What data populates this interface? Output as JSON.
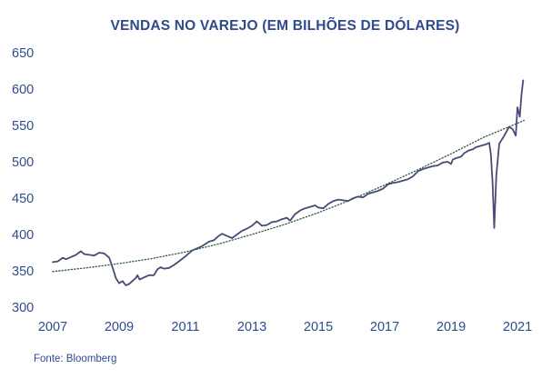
{
  "chart_data": {
    "type": "line",
    "title": "VENDAS NO VAREJO (EM BILHÕES DE DÓLARES)",
    "xlabel": "",
    "ylabel": "",
    "xlim": [
      2007.0,
      2021.3
    ],
    "ylim": [
      300,
      650
    ],
    "x_ticks": [
      "2007",
      "2009",
      "2011",
      "2013",
      "2015",
      "2017",
      "2019",
      "2021"
    ],
    "x_tick_values": [
      2007,
      2009,
      2011,
      2013,
      2015,
      2017,
      2019,
      2021
    ],
    "y_ticks": [
      "300",
      "350",
      "400",
      "450",
      "500",
      "550",
      "600",
      "650"
    ],
    "y_tick_values": [
      300,
      350,
      400,
      450,
      500,
      550,
      600,
      650
    ],
    "grid": false,
    "legend": "none",
    "series": [
      {
        "style": "solid",
        "color": "#4a4a78",
        "points": [
          [
            2007.0,
            362
          ],
          [
            2007.15,
            363
          ],
          [
            2007.3,
            368
          ],
          [
            2007.4,
            366
          ],
          [
            2007.55,
            369
          ],
          [
            2007.7,
            372
          ],
          [
            2007.85,
            377
          ],
          [
            2007.95,
            373
          ],
          [
            2008.1,
            372
          ],
          [
            2008.25,
            371
          ],
          [
            2008.4,
            375
          ],
          [
            2008.55,
            374
          ],
          [
            2008.7,
            368
          ],
          [
            2008.8,
            355
          ],
          [
            2008.9,
            340
          ],
          [
            2009.0,
            333
          ],
          [
            2009.1,
            336
          ],
          [
            2009.2,
            330
          ],
          [
            2009.3,
            332
          ],
          [
            2009.4,
            336
          ],
          [
            2009.5,
            340
          ],
          [
            2009.55,
            344
          ],
          [
            2009.62,
            338
          ],
          [
            2009.75,
            341
          ],
          [
            2009.9,
            344
          ],
          [
            2010.05,
            344
          ],
          [
            2010.15,
            352
          ],
          [
            2010.25,
            355
          ],
          [
            2010.35,
            353
          ],
          [
            2010.5,
            354
          ],
          [
            2010.65,
            358
          ],
          [
            2010.8,
            363
          ],
          [
            2011.0,
            370
          ],
          [
            2011.2,
            378
          ],
          [
            2011.35,
            381
          ],
          [
            2011.5,
            384
          ],
          [
            2011.7,
            390
          ],
          [
            2011.85,
            392
          ],
          [
            2012.0,
            398
          ],
          [
            2012.1,
            401
          ],
          [
            2012.25,
            398
          ],
          [
            2012.4,
            395
          ],
          [
            2012.55,
            400
          ],
          [
            2012.7,
            405
          ],
          [
            2012.85,
            408
          ],
          [
            2013.0,
            412
          ],
          [
            2013.15,
            418
          ],
          [
            2013.3,
            412
          ],
          [
            2013.45,
            413
          ],
          [
            2013.6,
            417
          ],
          [
            2013.75,
            418
          ],
          [
            2013.9,
            421
          ],
          [
            2014.05,
            423
          ],
          [
            2014.15,
            419
          ],
          [
            2014.3,
            428
          ],
          [
            2014.45,
            433
          ],
          [
            2014.6,
            436
          ],
          [
            2014.75,
            438
          ],
          [
            2014.9,
            440
          ],
          [
            2015.0,
            437
          ],
          [
            2015.15,
            436
          ],
          [
            2015.3,
            442
          ],
          [
            2015.45,
            446
          ],
          [
            2015.6,
            448
          ],
          [
            2015.75,
            447
          ],
          [
            2015.9,
            446
          ],
          [
            2016.05,
            450
          ],
          [
            2016.2,
            452
          ],
          [
            2016.35,
            451
          ],
          [
            2016.5,
            456
          ],
          [
            2016.65,
            458
          ],
          [
            2016.8,
            460
          ],
          [
            2016.95,
            463
          ],
          [
            2017.1,
            469
          ],
          [
            2017.25,
            471
          ],
          [
            2017.4,
            472
          ],
          [
            2017.55,
            474
          ],
          [
            2017.7,
            476
          ],
          [
            2017.85,
            480
          ],
          [
            2018.0,
            487
          ],
          [
            2018.15,
            490
          ],
          [
            2018.3,
            492
          ],
          [
            2018.45,
            494
          ],
          [
            2018.6,
            495
          ],
          [
            2018.75,
            499
          ],
          [
            2018.9,
            500
          ],
          [
            2019.0,
            497
          ],
          [
            2019.05,
            503
          ],
          [
            2019.15,
            505
          ],
          [
            2019.3,
            507
          ],
          [
            2019.4,
            512
          ],
          [
            2019.55,
            516
          ],
          [
            2019.65,
            517
          ],
          [
            2019.75,
            520
          ],
          [
            2019.9,
            522
          ],
          [
            2020.05,
            524
          ],
          [
            2020.15,
            526
          ],
          [
            2020.2,
            510
          ],
          [
            2020.25,
            470
          ],
          [
            2020.3,
            409
          ],
          [
            2020.36,
            480
          ],
          [
            2020.45,
            525
          ],
          [
            2020.55,
            532
          ],
          [
            2020.65,
            540
          ],
          [
            2020.75,
            548
          ],
          [
            2020.85,
            545
          ],
          [
            2020.95,
            536
          ],
          [
            2021.0,
            575
          ],
          [
            2021.07,
            562
          ],
          [
            2021.12,
            592
          ],
          [
            2021.17,
            612
          ]
        ]
      },
      {
        "style": "dotted",
        "color": "#2f5a4a",
        "points": [
          [
            2007.0,
            349
          ],
          [
            2008.0,
            354
          ],
          [
            2009.0,
            360
          ],
          [
            2010.0,
            367
          ],
          [
            2011.0,
            376
          ],
          [
            2012.0,
            387
          ],
          [
            2013.0,
            400
          ],
          [
            2014.0,
            414
          ],
          [
            2015.0,
            430
          ],
          [
            2016.0,
            448
          ],
          [
            2017.0,
            468
          ],
          [
            2018.0,
            489
          ],
          [
            2019.0,
            511
          ],
          [
            2020.0,
            534
          ],
          [
            2021.0,
            553
          ],
          [
            2021.2,
            557
          ]
        ]
      }
    ]
  },
  "source": "Fonte: Bloomberg"
}
